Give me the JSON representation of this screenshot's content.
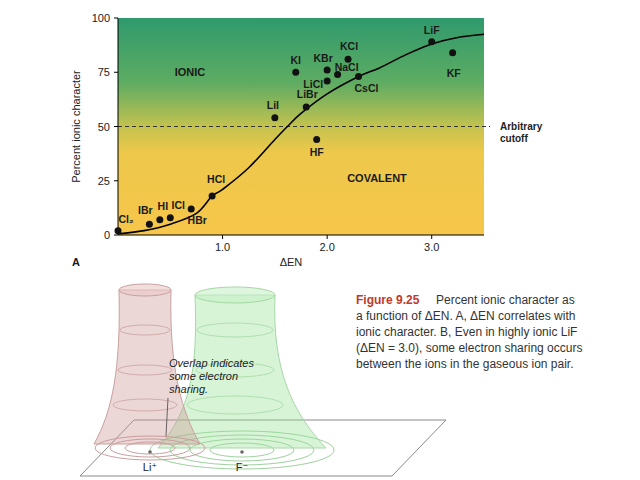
{
  "chart_data": {
    "type": "scatter",
    "x_label": "ΔEN",
    "y_label": "Percent ionic character",
    "xlim": [
      0,
      3.5
    ],
    "ylim": [
      0,
      100
    ],
    "xticks": [
      {
        "value": 1,
        "label": "1.0"
      },
      {
        "value": 2,
        "label": "2.0"
      },
      {
        "value": 3,
        "label": "3.0"
      }
    ],
    "yticks": [
      0,
      25,
      50,
      75,
      100
    ],
    "grid": false,
    "annotations": [
      "IONIC",
      "COVALENT",
      "A"
    ],
    "reference_line": {
      "value": 50,
      "label": "Arbitrary cutoff",
      "line_style": "dashed"
    },
    "series": [
      {
        "type": "scatter",
        "marker": "circle",
        "color": "#111111",
        "labels": [
          "Cl₂",
          "IBr",
          "HI",
          "ICl",
          "HBr",
          "HCl",
          "LiI",
          "LiBr",
          "HF",
          "KI",
          "KBr",
          "LiCl",
          "NaCl",
          "KCl",
          "CsCl",
          "LiF",
          "KF"
        ],
        "x": [
          0,
          0.3,
          0.4,
          0.5,
          0.7,
          0.9,
          1.5,
          1.8,
          1.9,
          1.7,
          2.0,
          2.0,
          2.1,
          2.2,
          2.3,
          3.0,
          3.2
        ],
        "values": [
          2,
          5,
          7,
          8,
          12,
          18,
          54,
          59,
          44,
          75,
          76,
          71,
          74,
          81,
          73,
          89,
          84
        ]
      },
      {
        "type": "line",
        "line_style": "solid",
        "color": "#000000",
        "x": [
          0,
          0.25,
          0.5,
          0.75,
          0.9,
          1.0,
          1.25,
          1.5,
          1.62,
          1.75,
          2.0,
          2.3,
          2.5,
          2.75,
          3.0,
          3.25,
          3.5
        ],
        "values": [
          0.5,
          2,
          5,
          10,
          18,
          21,
          31,
          44,
          50,
          56,
          65,
          73,
          77,
          83,
          88,
          91,
          92.5
        ]
      }
    ]
  },
  "caption": {
    "title": "Figure 9.25",
    "lines": [
      "Percent ionic character as",
      "a function of ΔEN. A, ΔEN correlates with",
      "ionic character. B, Even in highly ionic LiF",
      "(ΔEN = 3.0), some electron sharing occurs",
      "between the ions in the gaseous ion pair."
    ]
  },
  "diagram": {
    "overlap_note_lines": [
      "Overlap indicates",
      "some electron",
      "sharing."
    ],
    "ions": [
      "Li⁺",
      "F⁻"
    ]
  }
}
